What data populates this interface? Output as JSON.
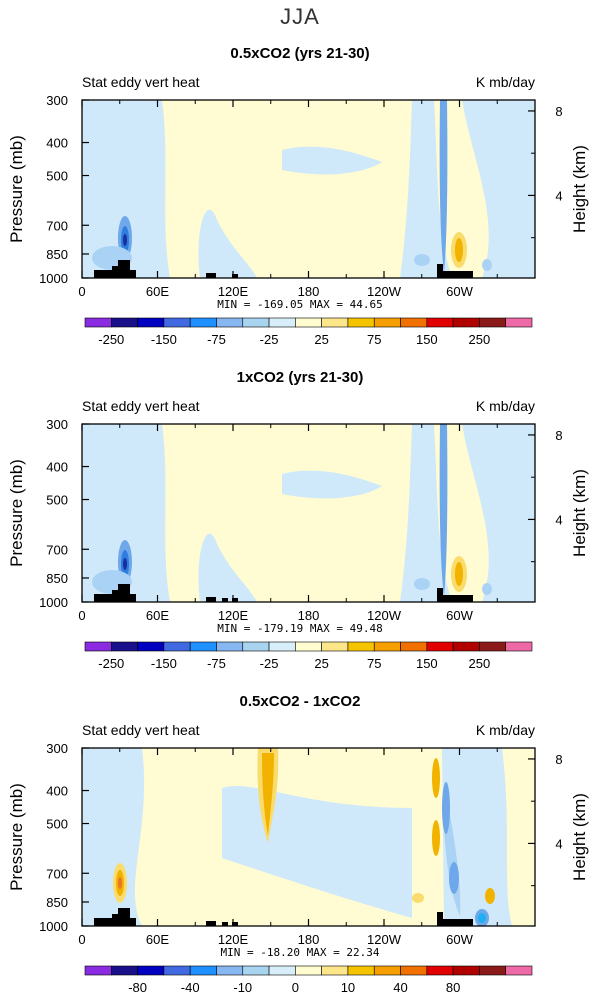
{
  "figure": {
    "title": "JJA"
  },
  "chart_data": [
    {
      "type": "heatmap",
      "title": "0.5xCO2 (yrs 21-30)",
      "left_label": "Stat eddy vert heat",
      "units": "K mb/day",
      "ylabel": "Pressure (mb)",
      "y2label": "Height (km)",
      "x_ticks": [
        "0",
        "60E",
        "120E",
        "180",
        "120W",
        "60W"
      ],
      "y_ticks": [
        "300",
        "400",
        "500",
        "700",
        "850",
        "1000"
      ],
      "y2_ticks": [
        "8",
        "4"
      ],
      "stats": "MIN = -169.05   MAX =  44.65",
      "colorbar_labels": [
        "-250",
        "-150",
        "-75",
        "-25",
        "25",
        "75",
        "150",
        "250"
      ],
      "colors": [
        "#8a2be2",
        "#1a0f8a",
        "#0000c0",
        "#4169e1",
        "#1e90ff",
        "#87b7f0",
        "#a8d4f0",
        "#d8eefa",
        "#fffdd0",
        "#fde68a",
        "#f5c400",
        "#f5a000",
        "#f07000",
        "#e00000",
        "#b00000",
        "#8b1a1a",
        "#ee6aa7"
      ]
    },
    {
      "type": "heatmap",
      "title": "1xCO2 (yrs 21-30)",
      "left_label": "Stat eddy vert heat",
      "units": "K mb/day",
      "ylabel": "Pressure (mb)",
      "y2label": "Height (km)",
      "x_ticks": [
        "0",
        "60E",
        "120E",
        "180",
        "120W",
        "60W"
      ],
      "y_ticks": [
        "300",
        "400",
        "500",
        "700",
        "850",
        "1000"
      ],
      "y2_ticks": [
        "8",
        "4"
      ],
      "stats": "MIN = -179.19   MAX =  49.48",
      "colorbar_labels": [
        "-250",
        "-150",
        "-75",
        "-25",
        "25",
        "75",
        "150",
        "250"
      ],
      "colors": [
        "#8a2be2",
        "#1a0f8a",
        "#0000c0",
        "#4169e1",
        "#1e90ff",
        "#87b7f0",
        "#a8d4f0",
        "#d8eefa",
        "#fffdd0",
        "#fde68a",
        "#f5c400",
        "#f5a000",
        "#f07000",
        "#e00000",
        "#b00000",
        "#8b1a1a",
        "#ee6aa7"
      ]
    },
    {
      "type": "heatmap",
      "title": "0.5xCO2 - 1xCO2",
      "left_label": "Stat eddy vert heat",
      "units": "K mb/day",
      "ylabel": "Pressure (mb)",
      "y2label": "Height (km)",
      "x_ticks": [
        "0",
        "60E",
        "120E",
        "180",
        "120W",
        "60W"
      ],
      "y_ticks": [
        "300",
        "400",
        "500",
        "700",
        "850",
        "1000"
      ],
      "y2_ticks": [
        "8",
        "4"
      ],
      "stats": "MIN =  -18.20   MAX =  22.34",
      "colorbar_labels": [
        "-80",
        "-40",
        "-10",
        "0",
        "10",
        "40",
        "80"
      ],
      "colors": [
        "#8a2be2",
        "#1a0f8a",
        "#0000c0",
        "#4169e1",
        "#1e90ff",
        "#87b7f0",
        "#a8d4f0",
        "#d8eefa",
        "#fffdd0",
        "#fde68a",
        "#f5c400",
        "#f5a000",
        "#f07000",
        "#e00000",
        "#b00000",
        "#8b1a1a",
        "#ee6aa7"
      ]
    }
  ]
}
